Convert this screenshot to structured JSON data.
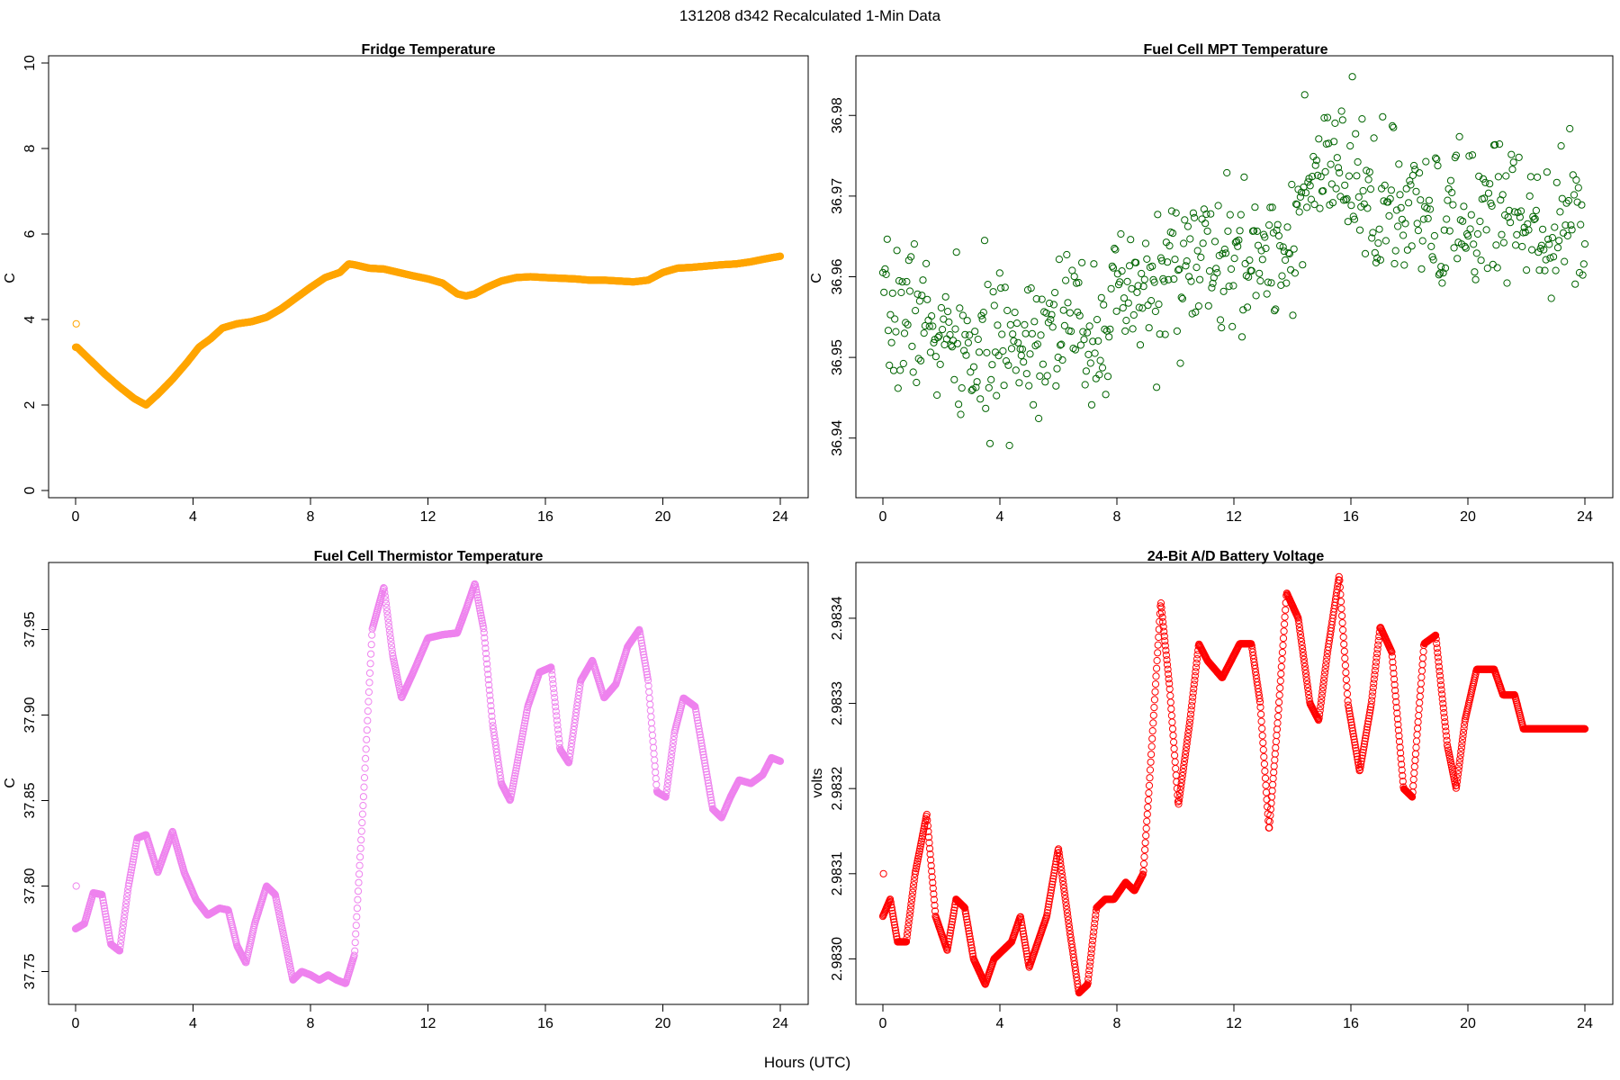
{
  "figure": {
    "super_title": "131208   d342   Recalculated 1-Min Data",
    "xlabel": "Hours (UTC)"
  },
  "chart_data": [
    {
      "type": "scatter",
      "title": "Fridge Temperature",
      "ylabel": "C",
      "xlabel": "",
      "color": "#FFA500",
      "xlim": [
        0,
        24
      ],
      "ylim": [
        0,
        10
      ],
      "xticks": [
        0,
        4,
        8,
        12,
        16,
        20,
        24
      ],
      "yticks": [
        0,
        2,
        4,
        6,
        8,
        10
      ],
      "ytick_labels": [
        "0",
        "2",
        "4",
        "6",
        "8",
        "10"
      ],
      "outlier": [
        0.02,
        3.9
      ],
      "series": [
        {
          "name": "Fridge Temperature",
          "x": [
            0.05,
            0.5,
            1.0,
            1.5,
            2.0,
            2.4,
            2.8,
            3.3,
            3.8,
            4.2,
            4.6,
            5.0,
            5.5,
            6.0,
            6.5,
            7.0,
            7.5,
            8.0,
            8.5,
            9.0,
            9.3,
            9.5,
            10.0,
            10.5,
            11.0,
            11.5,
            12.0,
            12.5,
            13.0,
            13.3,
            13.6,
            14.0,
            14.5,
            15.0,
            15.5,
            16.0,
            17.0,
            17.5,
            18.0,
            18.5,
            19.0,
            19.5,
            20.0,
            20.5,
            21.0,
            21.5,
            22.0,
            22.5,
            23.0,
            23.5,
            24.0
          ],
          "y": [
            3.35,
            3.05,
            2.72,
            2.42,
            2.15,
            2.0,
            2.25,
            2.6,
            3.0,
            3.35,
            3.55,
            3.8,
            3.9,
            3.95,
            4.05,
            4.25,
            4.5,
            4.75,
            4.98,
            5.1,
            5.3,
            5.28,
            5.2,
            5.18,
            5.1,
            5.02,
            4.95,
            4.85,
            4.6,
            4.55,
            4.6,
            4.75,
            4.9,
            4.98,
            5.0,
            4.98,
            4.95,
            4.92,
            4.92,
            4.9,
            4.88,
            4.92,
            5.1,
            5.2,
            5.22,
            5.25,
            5.28,
            5.3,
            5.35,
            5.42,
            5.48
          ]
        }
      ],
      "generator": {
        "mode": "line",
        "count": 1440,
        "noise": 0.0,
        "seed": 1
      }
    },
    {
      "type": "scatter",
      "title": "Fuel Cell MPT Temperature",
      "ylabel": "C",
      "xlabel": "",
      "color": "#006400",
      "xlim": [
        0,
        24
      ],
      "ylim": [
        36.9335,
        36.9865
      ],
      "xticks": [
        0,
        4,
        8,
        12,
        16,
        20,
        24
      ],
      "yticks": [
        36.94,
        36.95,
        36.96,
        36.97,
        36.98
      ],
      "ytick_labels": [
        "36.94",
        "36.95",
        "36.96",
        "36.97",
        "36.98"
      ],
      "series": [
        {
          "name": "Fuel Cell MPT Temperature",
          "x": [
            0,
            1,
            2,
            3,
            4,
            5,
            6,
            7,
            8,
            9,
            10,
            11,
            12,
            13,
            14,
            14.8,
            15.5,
            16,
            17,
            18,
            19,
            20,
            21,
            22,
            23,
            24
          ],
          "y": [
            36.954,
            36.956,
            36.952,
            36.95,
            36.951,
            36.953,
            36.955,
            36.953,
            36.956,
            36.958,
            36.961,
            36.962,
            36.961,
            36.963,
            36.965,
            36.972,
            36.973,
            36.971,
            36.969,
            36.967,
            36.966,
            36.967,
            36.969,
            36.968,
            36.967,
            36.967
          ]
        }
      ],
      "generator": {
        "mode": "noisy",
        "count": 650,
        "noise": 0.0045,
        "seed": 7
      }
    },
    {
      "type": "scatter",
      "title": "Fuel Cell Thermistor Temperature",
      "ylabel": "C",
      "xlabel": "",
      "color": "#EE82EE",
      "xlim": [
        0,
        24
      ],
      "ylim": [
        37.735,
        37.985
      ],
      "xticks": [
        0,
        4,
        8,
        12,
        16,
        20,
        24
      ],
      "yticks": [
        37.75,
        37.8,
        37.85,
        37.9,
        37.95
      ],
      "ytick_labels": [
        "37.75",
        "37.80",
        "37.85",
        "37.90",
        "37.95"
      ],
      "outlier": [
        0.02,
        37.8
      ],
      "series": [
        {
          "name": "Fuel Cell Thermistor Temperature",
          "x": [
            0,
            0.3,
            0.6,
            0.9,
            1.2,
            1.5,
            1.8,
            2.1,
            2.4,
            2.8,
            3.3,
            3.7,
            4.1,
            4.5,
            4.9,
            5.2,
            5.5,
            5.8,
            6.1,
            6.5,
            6.8,
            7.1,
            7.4,
            7.7,
            8.0,
            8.3,
            8.6,
            8.9,
            9.2,
            9.5,
            9.8,
            10.1,
            10.5,
            10.8,
            11.1,
            11.5,
            12.0,
            12.5,
            13.0,
            13.3,
            13.6,
            13.9,
            14.2,
            14.5,
            14.8,
            15.0,
            15.4,
            15.8,
            16.2,
            16.5,
            16.8,
            17.2,
            17.6,
            18.0,
            18.4,
            18.8,
            19.2,
            19.5,
            19.8,
            20.1,
            20.4,
            20.7,
            21.1,
            21.4,
            21.7,
            22.0,
            22.3,
            22.6,
            23.0,
            23.4,
            23.7,
            24.0
          ],
          "y": [
            37.775,
            37.778,
            37.796,
            37.795,
            37.766,
            37.762,
            37.8,
            37.828,
            37.83,
            37.808,
            37.832,
            37.808,
            37.792,
            37.783,
            37.787,
            37.786,
            37.765,
            37.755,
            37.778,
            37.8,
            37.795,
            37.77,
            37.745,
            37.75,
            37.748,
            37.745,
            37.748,
            37.745,
            37.743,
            37.76,
            37.85,
            37.95,
            37.975,
            37.935,
            37.91,
            37.925,
            37.945,
            37.947,
            37.948,
            37.962,
            37.977,
            37.95,
            37.895,
            37.86,
            37.85,
            37.868,
            37.905,
            37.925,
            37.928,
            37.88,
            37.872,
            37.92,
            37.932,
            37.91,
            37.918,
            37.94,
            37.95,
            37.92,
            37.855,
            37.852,
            37.89,
            37.91,
            37.905,
            37.875,
            37.845,
            37.84,
            37.852,
            37.862,
            37.86,
            37.865,
            37.875,
            37.873
          ]
        }
      ],
      "generator": {
        "mode": "line",
        "count": 1440,
        "noise": 0.0,
        "seed": 3
      }
    },
    {
      "type": "scatter",
      "title": "24-Bit A/D Battery Voltage",
      "ylabel": "volts",
      "xlabel": "",
      "color": "#FF0000",
      "xlim": [
        0,
        24
      ],
      "ylim": [
        2.982955,
        2.983457
      ],
      "xticks": [
        0,
        4,
        8,
        12,
        16,
        20,
        24
      ],
      "yticks": [
        2.983,
        2.9831,
        2.9832,
        2.9833,
        2.9834
      ],
      "ytick_labels": [
        "2.9830",
        "2.9831",
        "2.9832",
        "2.9833",
        "2.9834"
      ],
      "outlier": [
        0.02,
        2.9831
      ],
      "series": [
        {
          "name": "24-Bit A/D Battery Voltage",
          "x": [
            0,
            0.25,
            0.5,
            0.8,
            1.1,
            1.5,
            1.8,
            2.2,
            2.5,
            2.8,
            3.1,
            3.5,
            3.8,
            4.1,
            4.4,
            4.7,
            5.0,
            5.3,
            5.6,
            6.0,
            6.4,
            6.7,
            7.0,
            7.3,
            7.6,
            7.9,
            8.3,
            8.6,
            8.9,
            9.1,
            9.5,
            9.8,
            10.1,
            10.5,
            10.8,
            11.1,
            11.6,
            11.9,
            12.2,
            12.6,
            12.9,
            13.2,
            13.5,
            13.8,
            14.2,
            14.6,
            14.9,
            15.2,
            15.6,
            15.9,
            16.3,
            16.7,
            17.0,
            17.4,
            17.8,
            18.1,
            18.5,
            18.9,
            19.3,
            19.6,
            19.9,
            20.3,
            20.6,
            20.9,
            21.2,
            21.6,
            21.9,
            22.2,
            22.6,
            22.9,
            23.2,
            23.5,
            23.8,
            24.0
          ],
          "y": [
            2.98305,
            2.98307,
            2.98302,
            2.98302,
            2.9831,
            2.98317,
            2.98305,
            2.98301,
            2.98307,
            2.98306,
            2.983,
            2.98297,
            2.983,
            2.98301,
            2.98302,
            2.98305,
            2.98299,
            2.98302,
            2.98305,
            2.98313,
            2.98303,
            2.98296,
            2.98297,
            2.98306,
            2.98307,
            2.98307,
            2.98309,
            2.98308,
            2.9831,
            2.9832,
            2.98342,
            2.98332,
            2.98318,
            2.98328,
            2.98337,
            2.98335,
            2.98333,
            2.98335,
            2.98337,
            2.98337,
            2.9833,
            2.98315,
            2.98328,
            2.98343,
            2.9834,
            2.9833,
            2.98328,
            2.98336,
            2.98345,
            2.9833,
            2.98322,
            2.9833,
            2.98339,
            2.98336,
            2.9832,
            2.98319,
            2.98337,
            2.98338,
            2.98325,
            2.9832,
            2.98328,
            2.98334,
            2.98334,
            2.98334,
            2.98331,
            2.98331,
            2.98327,
            2.98327,
            2.98327,
            2.98327,
            2.98327,
            2.98327,
            2.98327,
            2.98327
          ]
        }
      ],
      "generator": {
        "mode": "line",
        "count": 1440,
        "noise": 0.0,
        "seed": 5
      }
    }
  ]
}
